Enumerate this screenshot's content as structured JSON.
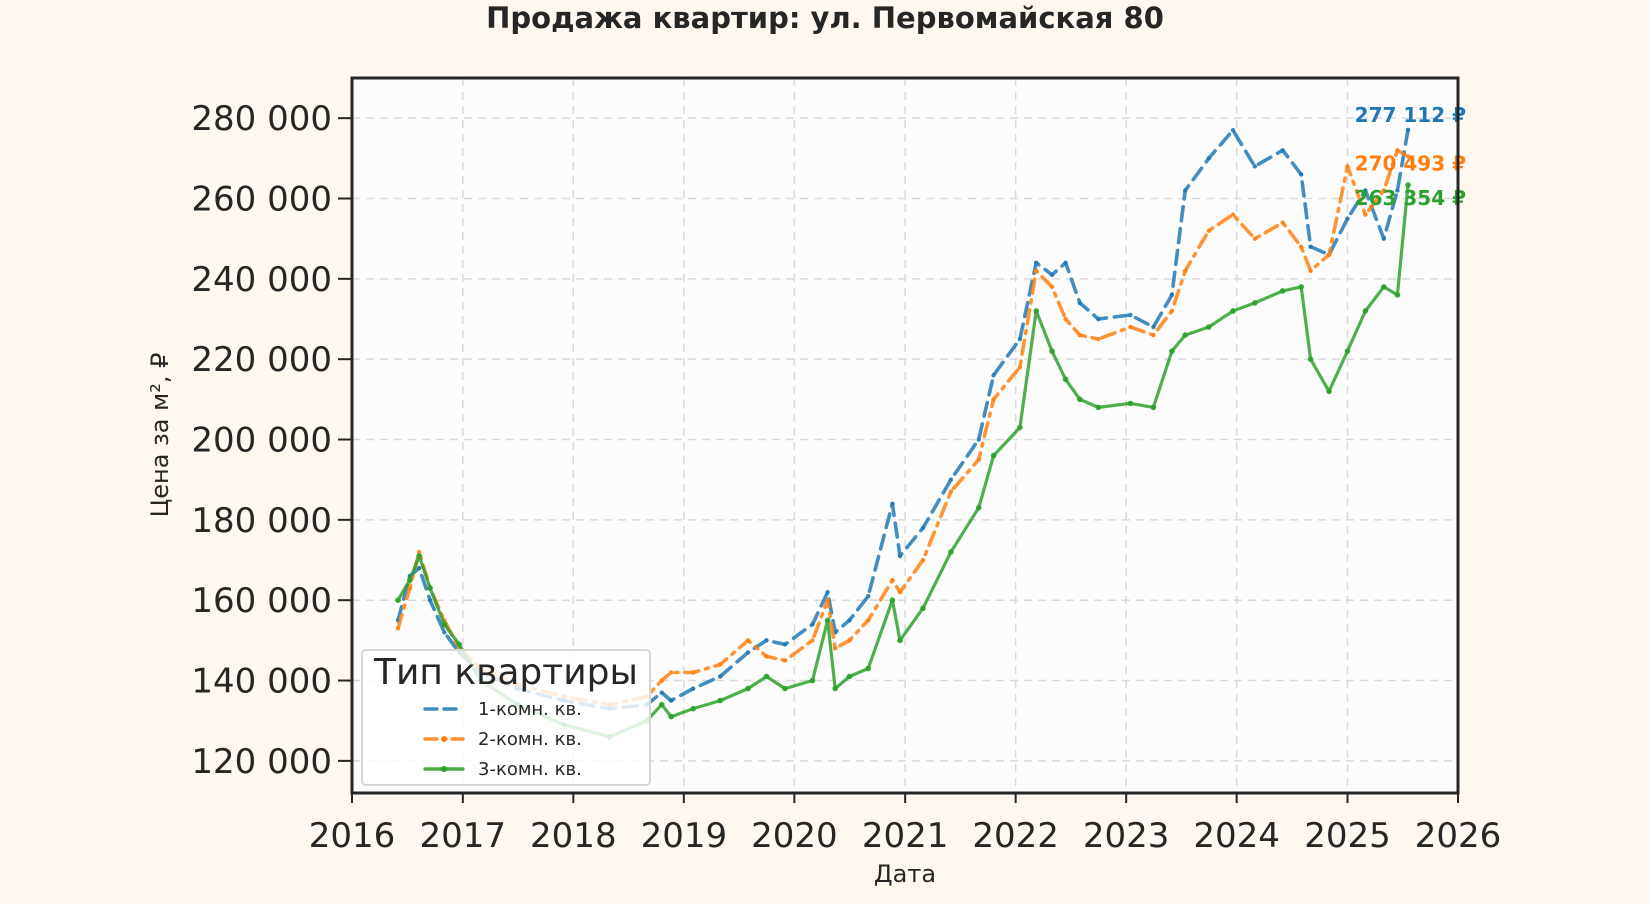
{
  "chart_data": {
    "type": "line",
    "title": "Продажа квартир: ул. Первомайская 80",
    "xlabel": "Дата",
    "ylabel": "Цена за м², ₽",
    "xlim": [
      "2016-01-01",
      "2026-01-01"
    ],
    "ylim": [
      112000,
      290000
    ],
    "x_ticks": [
      "2016",
      "2017",
      "2018",
      "2019",
      "2020",
      "2021",
      "2022",
      "2023",
      "2024",
      "2025",
      "2026"
    ],
    "y_ticks": [
      {
        "value": 120000,
        "label": "120 000"
      },
      {
        "value": 140000,
        "label": "140 000"
      },
      {
        "value": 160000,
        "label": "160 000"
      },
      {
        "value": 180000,
        "label": "180 000"
      },
      {
        "value": 200000,
        "label": "200 000"
      },
      {
        "value": 220000,
        "label": "220 000"
      },
      {
        "value": 240000,
        "label": "240 000"
      },
      {
        "value": 260000,
        "label": "260 000"
      },
      {
        "value": 280000,
        "label": "280 000"
      }
    ],
    "grid": true,
    "legend": {
      "title": "Тип квартиры",
      "placement": "lower-left"
    },
    "series": [
      {
        "name": "1-комн. кв.",
        "color": "#1f77b4",
        "style": "dashed",
        "end_label": "277 112 ₽",
        "points": [
          [
            "2016-06-01",
            155000
          ],
          [
            "2016-07-10",
            166000
          ],
          [
            "2016-08-10",
            168000
          ],
          [
            "2016-09-15",
            160000
          ],
          [
            "2016-11-01",
            152000
          ],
          [
            "2016-12-20",
            147000
          ],
          [
            "2017-03-01",
            142000
          ],
          [
            "2017-07-01",
            138000
          ],
          [
            "2017-12-01",
            135000
          ],
          [
            "2018-05-01",
            133000
          ],
          [
            "2018-09-01",
            134000
          ],
          [
            "2018-10-20",
            137000
          ],
          [
            "2018-11-20",
            135000
          ],
          [
            "2019-02-01",
            138000
          ],
          [
            "2019-05-01",
            141000
          ],
          [
            "2019-08-01",
            147000
          ],
          [
            "2019-10-01",
            150000
          ],
          [
            "2019-12-01",
            149000
          ],
          [
            "2020-03-01",
            154000
          ],
          [
            "2020-04-20",
            162000
          ],
          [
            "2020-05-15",
            152000
          ],
          [
            "2020-07-01",
            155000
          ],
          [
            "2020-09-01",
            161000
          ],
          [
            "2020-11-20",
            184000
          ],
          [
            "2020-12-15",
            171000
          ],
          [
            "2021-03-01",
            178000
          ],
          [
            "2021-06-01",
            190000
          ],
          [
            "2021-09-01",
            200000
          ],
          [
            "2021-10-20",
            216000
          ],
          [
            "2022-01-15",
            225000
          ],
          [
            "2022-03-10",
            244000
          ],
          [
            "2022-05-01",
            241000
          ],
          [
            "2022-06-15",
            244000
          ],
          [
            "2022-08-01",
            234000
          ],
          [
            "2022-10-01",
            230000
          ],
          [
            "2023-01-15",
            231000
          ],
          [
            "2023-04-01",
            228000
          ],
          [
            "2023-06-01",
            236000
          ],
          [
            "2023-07-15",
            262000
          ],
          [
            "2023-10-01",
            270000
          ],
          [
            "2023-12-20",
            277000
          ],
          [
            "2024-03-01",
            268000
          ],
          [
            "2024-06-01",
            272000
          ],
          [
            "2024-08-01",
            266000
          ],
          [
            "2024-09-01",
            248000
          ],
          [
            "2024-11-01",
            246000
          ],
          [
            "2025-01-01",
            255000
          ],
          [
            "2025-03-01",
            262000
          ],
          [
            "2025-05-01",
            250000
          ],
          [
            "2025-06-15",
            262000
          ],
          [
            "2025-07-20",
            277112
          ]
        ]
      },
      {
        "name": "2-комн. кв.",
        "color": "#ff7f0e",
        "style": "dash-dot",
        "end_label": "270 493 ₽",
        "points": [
          [
            "2016-06-01",
            153000
          ],
          [
            "2016-07-10",
            163000
          ],
          [
            "2016-08-10",
            172000
          ],
          [
            "2016-09-15",
            163000
          ],
          [
            "2016-11-01",
            155000
          ],
          [
            "2016-12-20",
            148000
          ],
          [
            "2017-03-01",
            143000
          ],
          [
            "2017-07-01",
            139000
          ],
          [
            "2017-12-01",
            136000
          ],
          [
            "2018-05-01",
            134000
          ],
          [
            "2018-09-01",
            136000
          ],
          [
            "2018-10-20",
            140000
          ],
          [
            "2018-11-20",
            142000
          ],
          [
            "2019-02-01",
            142000
          ],
          [
            "2019-05-01",
            144000
          ],
          [
            "2019-08-01",
            150000
          ],
          [
            "2019-10-01",
            146000
          ],
          [
            "2019-12-01",
            145000
          ],
          [
            "2020-03-01",
            150000
          ],
          [
            "2020-04-20",
            160000
          ],
          [
            "2020-05-15",
            148000
          ],
          [
            "2020-07-01",
            150000
          ],
          [
            "2020-09-01",
            155000
          ],
          [
            "2020-11-20",
            165000
          ],
          [
            "2020-12-15",
            162000
          ],
          [
            "2021-03-01",
            170000
          ],
          [
            "2021-06-01",
            187000
          ],
          [
            "2021-09-01",
            195000
          ],
          [
            "2021-10-20",
            210000
          ],
          [
            "2022-01-15",
            218000
          ],
          [
            "2022-03-10",
            242000
          ],
          [
            "2022-05-01",
            238000
          ],
          [
            "2022-06-15",
            230000
          ],
          [
            "2022-08-01",
            226000
          ],
          [
            "2022-10-01",
            225000
          ],
          [
            "2023-01-15",
            228000
          ],
          [
            "2023-04-01",
            226000
          ],
          [
            "2023-06-01",
            232000
          ],
          [
            "2023-07-15",
            242000
          ],
          [
            "2023-10-01",
            252000
          ],
          [
            "2023-12-20",
            256000
          ],
          [
            "2024-03-01",
            250000
          ],
          [
            "2024-06-01",
            254000
          ],
          [
            "2024-08-01",
            248000
          ],
          [
            "2024-09-01",
            242000
          ],
          [
            "2024-11-01",
            246000
          ],
          [
            "2025-01-01",
            268000
          ],
          [
            "2025-03-01",
            256000
          ],
          [
            "2025-05-01",
            262000
          ],
          [
            "2025-06-15",
            272000
          ],
          [
            "2025-07-20",
            270493
          ]
        ]
      },
      {
        "name": "3-комн. кв.",
        "color": "#2ca02c",
        "style": "solid-marker",
        "end_label": "263 354 ₽",
        "points": [
          [
            "2016-06-01",
            160000
          ],
          [
            "2016-07-10",
            165000
          ],
          [
            "2016-08-10",
            171000
          ],
          [
            "2016-09-15",
            163000
          ],
          [
            "2016-11-01",
            154000
          ],
          [
            "2016-12-20",
            149000
          ],
          [
            "2017-03-01",
            140000
          ],
          [
            "2017-07-01",
            134000
          ],
          [
            "2017-12-01",
            129000
          ],
          [
            "2018-05-01",
            126000
          ],
          [
            "2018-09-01",
            130000
          ],
          [
            "2018-10-20",
            134000
          ],
          [
            "2018-11-20",
            131000
          ],
          [
            "2019-02-01",
            133000
          ],
          [
            "2019-05-01",
            135000
          ],
          [
            "2019-08-01",
            138000
          ],
          [
            "2019-10-01",
            141000
          ],
          [
            "2019-12-01",
            138000
          ],
          [
            "2020-03-01",
            140000
          ],
          [
            "2020-04-20",
            155000
          ],
          [
            "2020-05-15",
            138000
          ],
          [
            "2020-07-01",
            141000
          ],
          [
            "2020-09-01",
            143000
          ],
          [
            "2020-11-20",
            160000
          ],
          [
            "2020-12-15",
            150000
          ],
          [
            "2021-03-01",
            158000
          ],
          [
            "2021-06-01",
            172000
          ],
          [
            "2021-09-01",
            183000
          ],
          [
            "2021-10-20",
            196000
          ],
          [
            "2022-01-15",
            203000
          ],
          [
            "2022-03-10",
            232000
          ],
          [
            "2022-05-01",
            222000
          ],
          [
            "2022-06-15",
            215000
          ],
          [
            "2022-08-01",
            210000
          ],
          [
            "2022-10-01",
            208000
          ],
          [
            "2023-01-15",
            209000
          ],
          [
            "2023-04-01",
            208000
          ],
          [
            "2023-06-01",
            222000
          ],
          [
            "2023-07-15",
            226000
          ],
          [
            "2023-10-01",
            228000
          ],
          [
            "2023-12-20",
            232000
          ],
          [
            "2024-03-01",
            234000
          ],
          [
            "2024-06-01",
            237000
          ],
          [
            "2024-08-01",
            238000
          ],
          [
            "2024-09-01",
            220000
          ],
          [
            "2024-11-01",
            212000
          ],
          [
            "2025-01-01",
            222000
          ],
          [
            "2025-03-01",
            232000
          ],
          [
            "2025-05-01",
            238000
          ],
          [
            "2025-06-15",
            236000
          ],
          [
            "2025-07-20",
            263354
          ]
        ]
      }
    ]
  }
}
